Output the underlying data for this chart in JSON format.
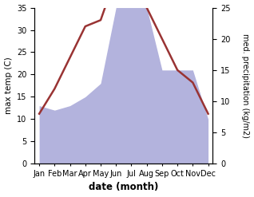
{
  "months": [
    "Jan",
    "Feb",
    "Mar",
    "Apr",
    "May",
    "Jun",
    "Jul",
    "Aug",
    "Sep",
    "Oct",
    "Nov",
    "Dec"
  ],
  "month_indices": [
    0,
    1,
    2,
    3,
    4,
    5,
    6,
    7,
    8,
    9,
    10,
    11
  ],
  "temperature": [
    8,
    12,
    17,
    22,
    23,
    30,
    27,
    25,
    20,
    15,
    13,
    8
  ],
  "precipitation": [
    13,
    12,
    13,
    15,
    18,
    35,
    35,
    35,
    21,
    21,
    21,
    10
  ],
  "temp_color": "#993333",
  "precip_color": "#b3b3dd",
  "left_ylim": [
    0,
    35
  ],
  "right_ylim": [
    0,
    25
  ],
  "left_yticks": [
    0,
    5,
    10,
    15,
    20,
    25,
    30,
    35
  ],
  "right_yticks": [
    0,
    5,
    10,
    15,
    20,
    25
  ],
  "xlabel": "date (month)",
  "ylabel_left": "max temp (C)",
  "ylabel_right": "med. precipitation (kg/m2)",
  "temp_linewidth": 1.8,
  "figsize": [
    3.18,
    2.47
  ],
  "dpi": 100
}
